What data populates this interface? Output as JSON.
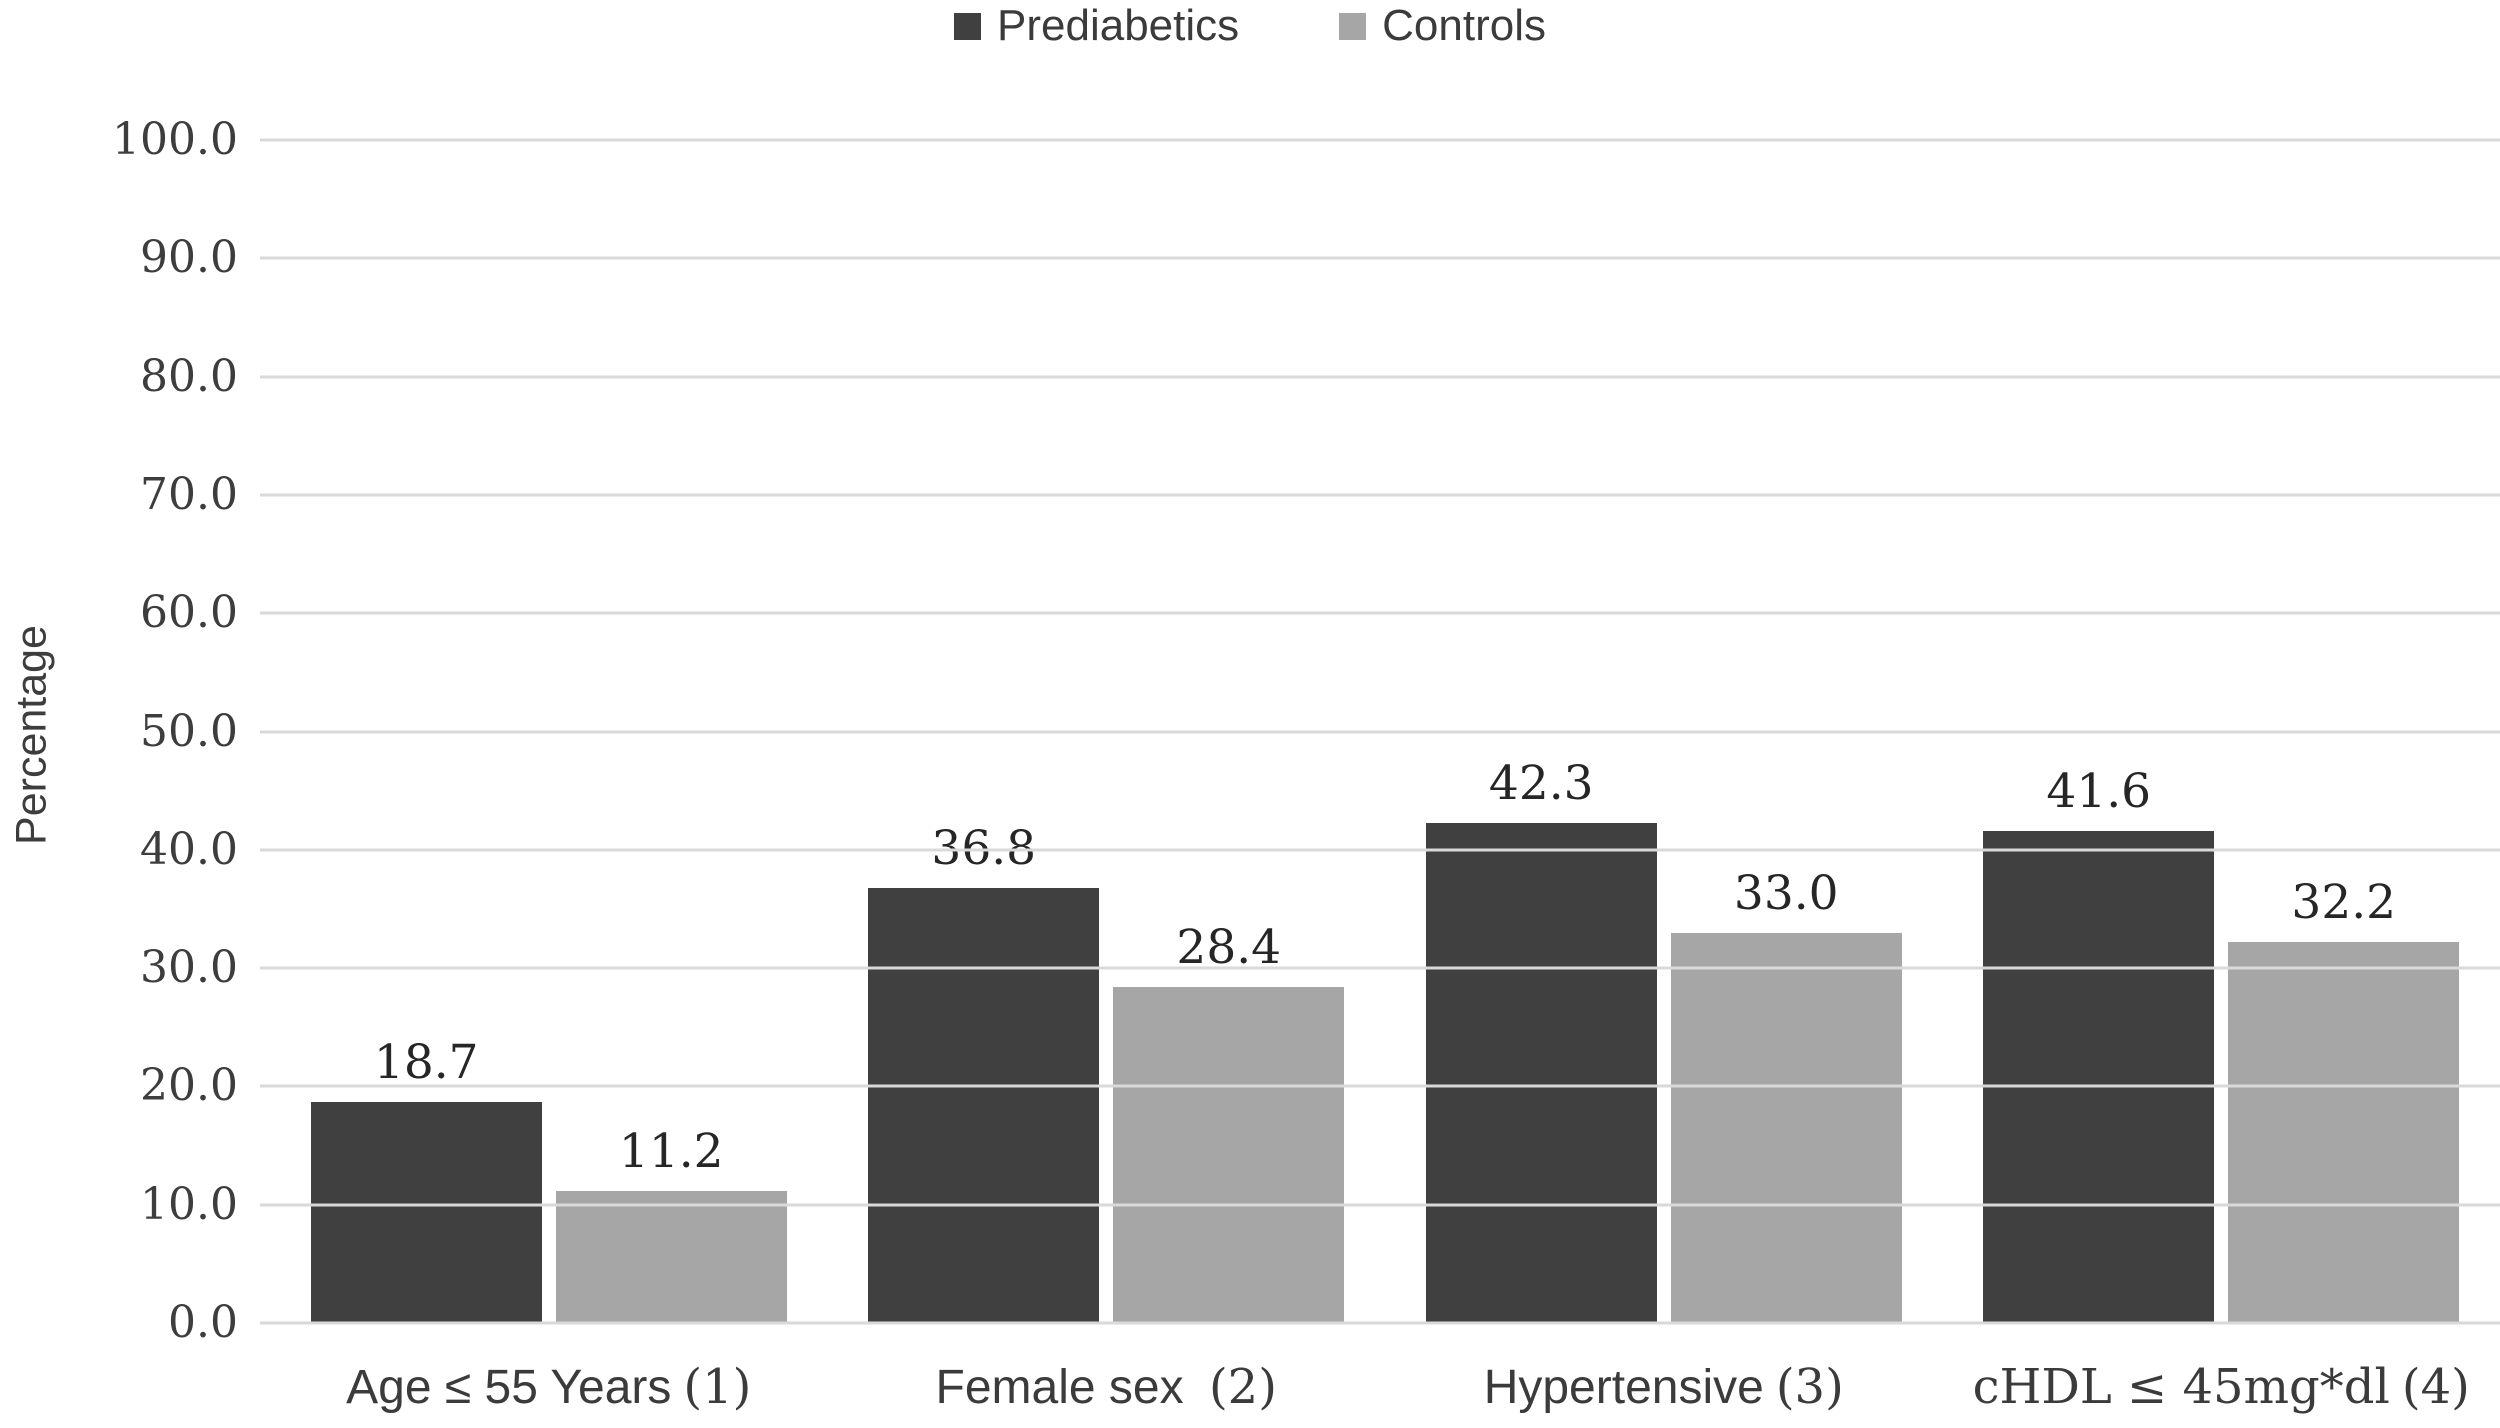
{
  "chart_data": {
    "type": "bar",
    "title": "",
    "xlabel": "",
    "ylabel": "Percentage",
    "ylim": [
      0,
      100
    ],
    "ytick_step": 10,
    "ytick_format": "one_decimal",
    "grid": true,
    "gridline_color": "#d9d9d9",
    "background_color": "#ffffff",
    "legend_position": "top-center",
    "value_labels": true,
    "categories": [
      {
        "name": "Age ≤ 55 Years",
        "tag": "(1)"
      },
      {
        "name": "Female sex ",
        "tag": "(2)"
      },
      {
        "name": "Hypertensive",
        "tag": "(3)"
      },
      {
        "name": "cHDL ≤ 45mg*dl",
        "tag": "(4)"
      }
    ],
    "series": [
      {
        "name": "Prediabetics",
        "color": "#404040",
        "values": [
          18.7,
          36.8,
          42.3,
          41.6
        ]
      },
      {
        "name": "Controls",
        "color": "#a6a6a6",
        "values": [
          11.2,
          28.4,
          33.0,
          32.2
        ]
      }
    ]
  }
}
